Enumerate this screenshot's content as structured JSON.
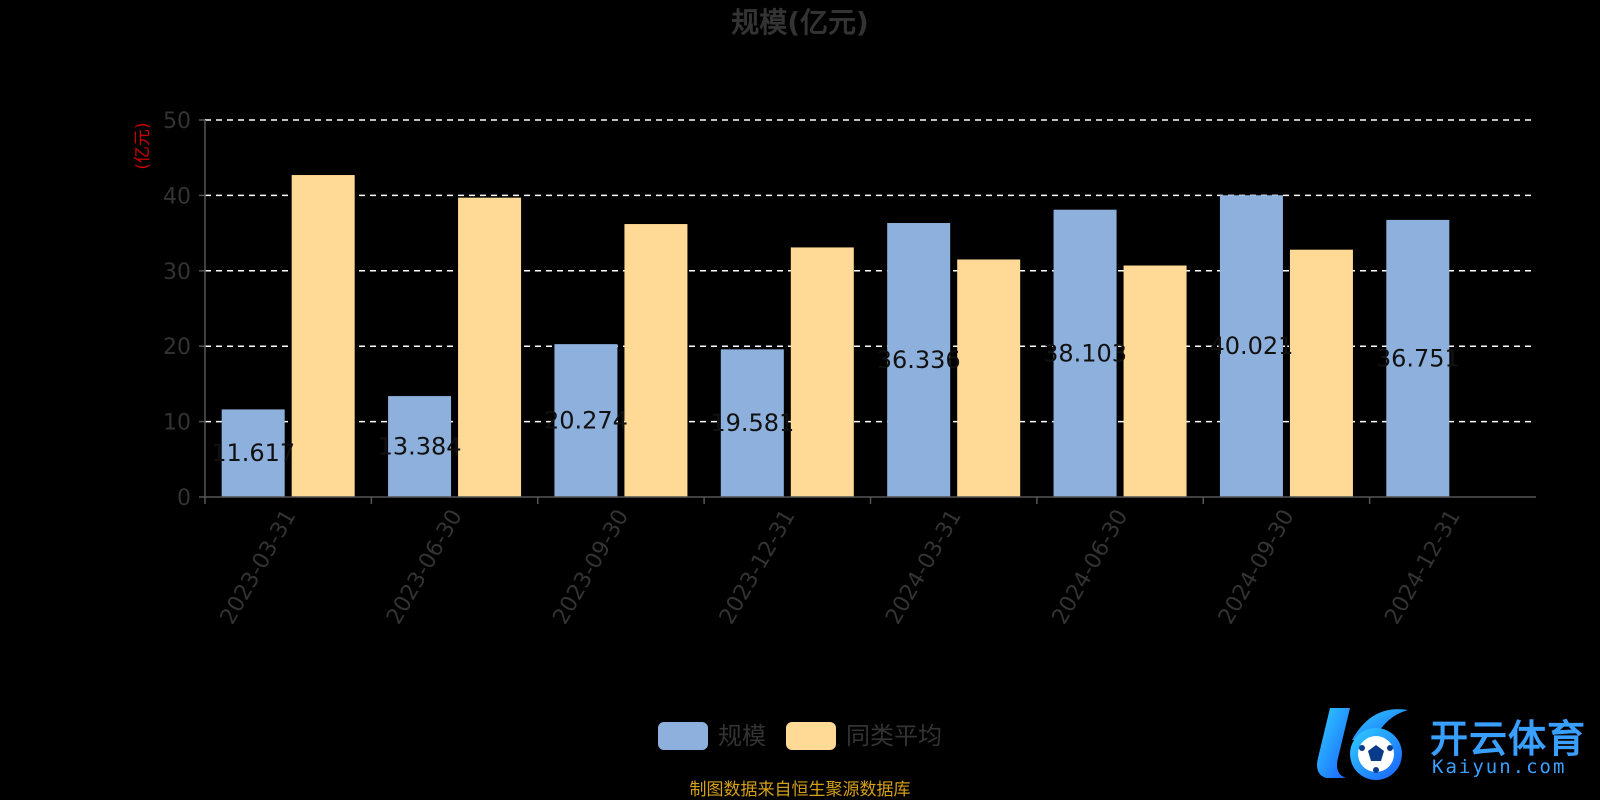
{
  "chart_data": {
    "type": "bar",
    "title": "规模(亿元)",
    "ylabel": "(亿元)",
    "ylim": [
      0,
      50
    ],
    "yticks": [
      0,
      10,
      20,
      30,
      40,
      50
    ],
    "grid": true,
    "legend_position": "bottom",
    "categories": [
      "2023-03-31",
      "2023-06-30",
      "2023-09-30",
      "2023-12-31",
      "2024-03-31",
      "2024-06-30",
      "2024-09-30",
      "2024-12-31"
    ],
    "series": [
      {
        "name": "规模",
        "color": "#8eb0dd",
        "values": [
          11.617,
          13.384,
          20.274,
          19.581,
          36.336,
          38.103,
          40.021,
          36.751
        ],
        "labels": [
          "11.617",
          "13.384",
          "20.274",
          "19.581",
          "36.336",
          "38.103",
          "40.021",
          "36.751"
        ]
      },
      {
        "name": "同类平均",
        "color": "#ffd996",
        "values": [
          42.7,
          39.7,
          36.2,
          33.1,
          31.5,
          30.7,
          32.8,
          null
        ]
      }
    ]
  },
  "footer": {
    "source": "制图数据来自恒生聚源数据库"
  },
  "watermark": {
    "brand": "开云体育",
    "domain": "Kaiyun.com",
    "icon": "soccer-ball-logo-icon"
  }
}
